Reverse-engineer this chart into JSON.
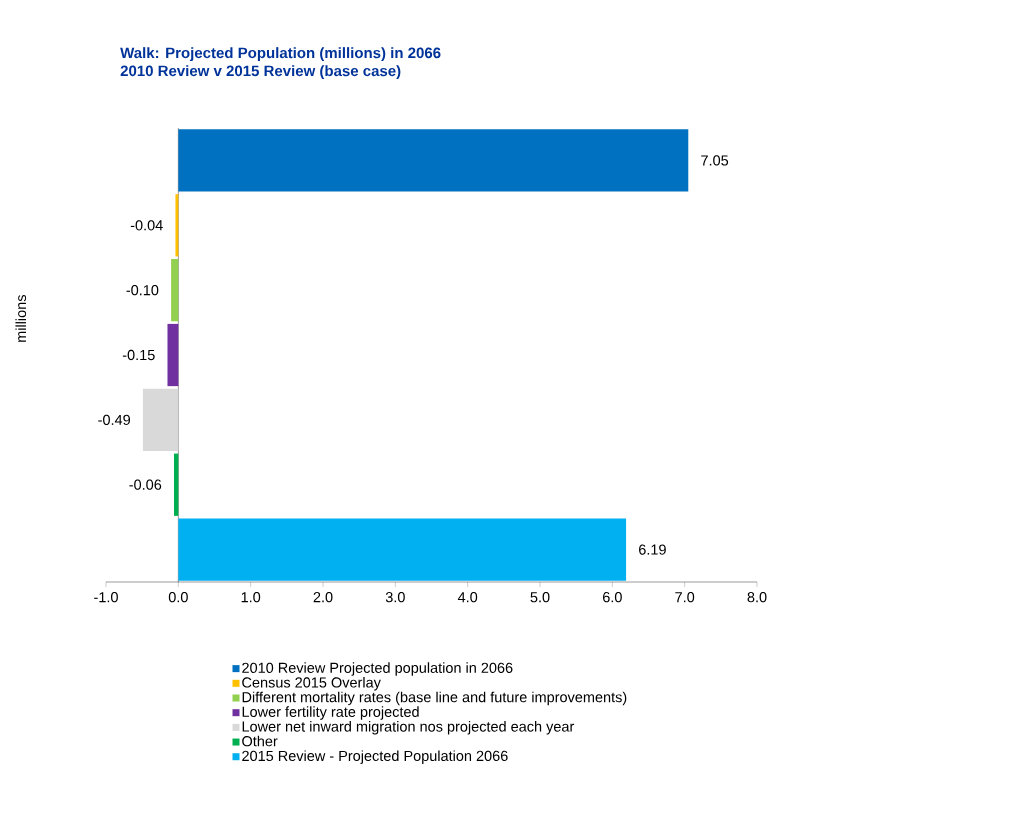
{
  "chart_data": {
    "type": "bar",
    "orientation": "horizontal",
    "title": "Walk: Projected Population (millions) in 2066",
    "subtitle": "2010 Review v 2015 Review (base case)",
    "ylabel": "millions",
    "categories": [
      null,
      null,
      null,
      null,
      null,
      null,
      null
    ],
    "series": [
      {
        "name": "2010 Review Projected population in 2066",
        "color": "#0070c0",
        "values": [
          7.05,
          null,
          null,
          null,
          null,
          null,
          null
        ],
        "value_labels": [
          "7.05",
          null,
          null,
          null,
          null,
          null,
          null
        ]
      },
      {
        "name": "Census 2015 Overlay",
        "color": "#ffc000",
        "values": [
          null,
          -0.04,
          null,
          null,
          null,
          null,
          null
        ],
        "value_labels": [
          null,
          "-0.04",
          null,
          null,
          null,
          null,
          null
        ]
      },
      {
        "name": "Different mortality rates (base line and future improvements)",
        "color": "#92d050",
        "values": [
          null,
          null,
          -0.1,
          null,
          null,
          null,
          null
        ],
        "value_labels": [
          null,
          null,
          "-0.10",
          null,
          null,
          null,
          null
        ]
      },
      {
        "name": "Lower fertility rate projected",
        "color": "#7030a0",
        "values": [
          null,
          null,
          null,
          -0.15,
          null,
          null,
          null
        ],
        "value_labels": [
          null,
          null,
          null,
          "-0.15",
          null,
          null,
          null
        ]
      },
      {
        "name": "Lower net inward migration nos projected each year",
        "color": "#d9d9d9",
        "values": [
          null,
          null,
          null,
          null,
          -0.49,
          null,
          null
        ],
        "value_labels": [
          null,
          null,
          null,
          null,
          "-0.49",
          null,
          null
        ]
      },
      {
        "name": "Other",
        "color": "#00b050",
        "values": [
          null,
          null,
          null,
          null,
          null,
          -0.06,
          null
        ],
        "value_labels": [
          null,
          null,
          null,
          null,
          null,
          "-0.06",
          null
        ]
      },
      {
        "name": "2015 Review - Projected Population 2066",
        "color": "#00b0f0",
        "values": [
          null,
          null,
          null,
          null,
          null,
          null,
          6.19
        ],
        "value_labels": [
          null,
          null,
          null,
          null,
          null,
          null,
          "6.19"
        ]
      }
    ],
    "xlim": [
      -1,
      8
    ],
    "xticks": [
      {
        "value": -1,
        "label": "-1.0"
      },
      {
        "value": 0,
        "label": "0.0"
      },
      {
        "value": 1,
        "label": "1.0"
      },
      {
        "value": 2,
        "label": "2.0"
      },
      {
        "value": 3,
        "label": "3.0"
      },
      {
        "value": 4,
        "label": "4.0"
      },
      {
        "value": 5,
        "label": "5.0"
      },
      {
        "value": 6,
        "label": "6.0"
      },
      {
        "value": 7,
        "label": "7.0"
      },
      {
        "value": 8,
        "label": "8.0"
      }
    ],
    "legend": "bottom"
  }
}
